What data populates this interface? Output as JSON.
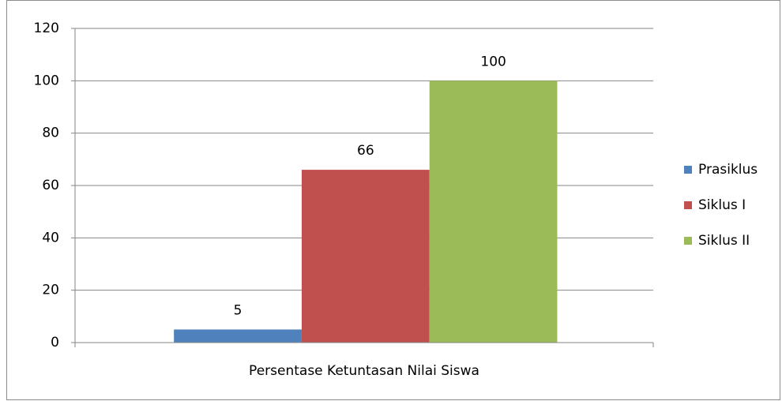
{
  "chart_data": {
    "type": "bar",
    "categories": [
      "Persentase Ketuntasan Nilai Siswa"
    ],
    "series": [
      {
        "name": "Prasiklus",
        "color": "#4f81bd",
        "values": [
          5
        ]
      },
      {
        "name": "Siklus I",
        "color": "#c0504d",
        "values": [
          66
        ]
      },
      {
        "name": "Siklus II",
        "color": "#9bbb59",
        "values": [
          100
        ]
      }
    ],
    "ylim": [
      0,
      120
    ],
    "yticks": [
      0,
      20,
      40,
      60,
      80,
      100,
      120
    ],
    "grid": true,
    "legend": "right"
  }
}
